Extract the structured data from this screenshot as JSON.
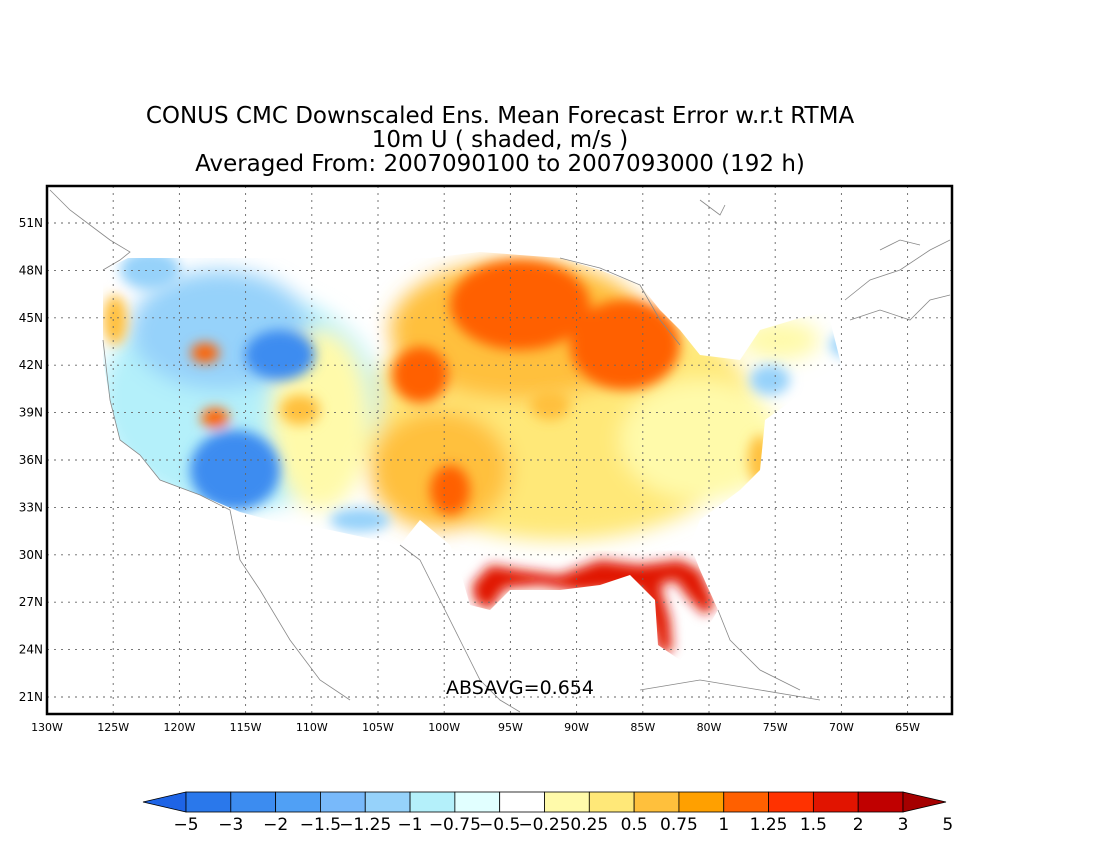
{
  "titles": {
    "line1": "CONUS CMC Downscaled Ens. Mean Forecast Error w.r.t RTMA",
    "line2": "10m U ( shaded, m/s )",
    "line3": "Averaged From: 2007090100 to 2007093000 (192 h)"
  },
  "annotation": "ABSAVG=0.654",
  "axes": {
    "lat_labels": [
      "51N",
      "48N",
      "45N",
      "42N",
      "39N",
      "36N",
      "33N",
      "30N",
      "27N",
      "24N",
      "21N"
    ],
    "lon_labels": [
      "130W",
      "125W",
      "120W",
      "115W",
      "110W",
      "105W",
      "100W",
      "95W",
      "90W",
      "85W",
      "80W",
      "75W",
      "70W",
      "65W"
    ]
  },
  "colorbar": {
    "labels": [
      "-5",
      "-3",
      "-2",
      "-1.5",
      "-1.25",
      "-1",
      "-0.75",
      "-0.5",
      "-0.25",
      "0.25",
      "0.5",
      "0.75",
      "1",
      "1.25",
      "1.5",
      "2",
      "3",
      "5"
    ],
    "colors": [
      "#1e64e6",
      "#2a78eb",
      "#3c8cf0",
      "#50a0f5",
      "#78b9fa",
      "#96d2fa",
      "#b4f0fa",
      "#e1ffff",
      "#ffffff",
      "#fffaaa",
      "#ffe878",
      "#ffc03c",
      "#ffa000",
      "#ff6000",
      "#ff3200",
      "#e11400",
      "#c00000",
      "#a50000"
    ]
  },
  "map_colors": {
    "neg_strong": "#3c8cf0",
    "neg_mid": "#96d2fa",
    "neg_light": "#b4f0fa",
    "pos_light": "#fffaaa",
    "pos_low": "#ffe878",
    "pos_mid": "#ffc03c",
    "pos_high": "#ff6000",
    "pos_strong": "#e11400"
  }
}
